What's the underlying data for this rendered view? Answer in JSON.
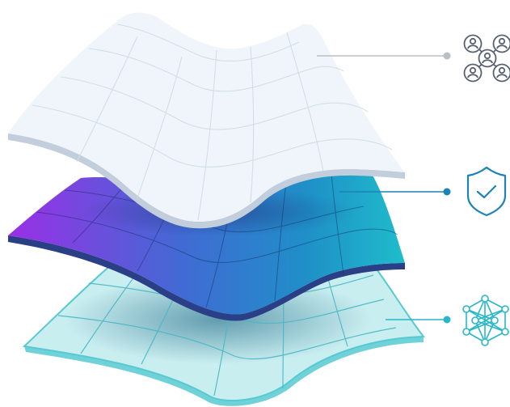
{
  "layers": [
    {
      "name": "top-layer",
      "icon": "people-network-icon",
      "colors": {
        "surface": "#f0f5fb",
        "edge": "#c3cedc",
        "grid": "#d6e0ec",
        "connector": "#b9bec7"
      }
    },
    {
      "name": "middle-layer",
      "icon": "shield-check-icon",
      "colors": {
        "gradient_start": "#9a2fe6",
        "gradient_mid": "#2a77c7",
        "gradient_end": "#1fbccb",
        "edge": "#2a3f86",
        "connector": "#1c83b6"
      }
    },
    {
      "name": "bottom-layer",
      "icon": "neural-network-icon",
      "colors": {
        "surface": "#c9eef0",
        "edge": "#58c9d1",
        "grid": "#47b8c4",
        "connector": "#29b7c8"
      }
    }
  ]
}
